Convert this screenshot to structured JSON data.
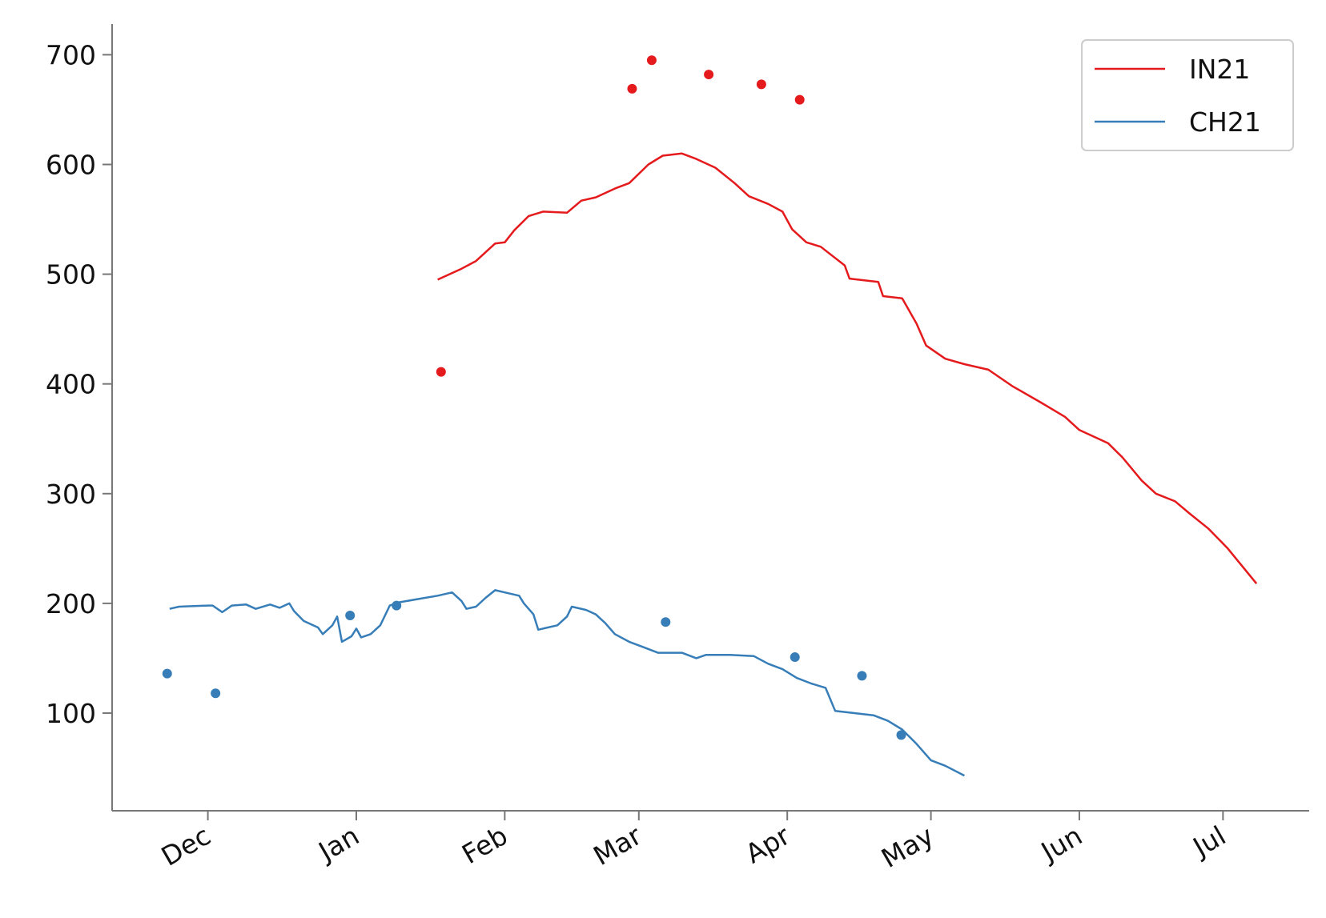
{
  "chart_data": {
    "type": "line",
    "xlim": [
      -20,
      230
    ],
    "ylim": [
      11,
      728
    ],
    "xticks": [
      {
        "value": 0,
        "label": "Dec"
      },
      {
        "value": 31,
        "label": "Jan"
      },
      {
        "value": 62,
        "label": "Feb"
      },
      {
        "value": 90,
        "label": "Mar"
      },
      {
        "value": 121,
        "label": "Apr"
      },
      {
        "value": 151,
        "label": "May"
      },
      {
        "value": 182,
        "label": "Jun"
      },
      {
        "value": 212,
        "label": "Jul"
      }
    ],
    "yticks": [
      100,
      200,
      300,
      400,
      500,
      600,
      700
    ],
    "legend": "upper right",
    "series": [
      {
        "name": "IN21",
        "color": "#e41a1c",
        "x": [
          48,
          53,
          56,
          60,
          62,
          64,
          67,
          70,
          75,
          78,
          81,
          85,
          88,
          92,
          95,
          99,
          102,
          106,
          110,
          113,
          117,
          120,
          122,
          125,
          128,
          133,
          134,
          140,
          141,
          145,
          148,
          150,
          154,
          158,
          163,
          168,
          174,
          179,
          182,
          188,
          191,
          195,
          198,
          202,
          205,
          209,
          213,
          216,
          219
        ],
        "values": [
          495,
          505,
          512,
          528,
          529,
          540,
          553,
          557,
          556,
          567,
          570,
          578,
          583,
          600,
          608,
          610,
          605,
          597,
          583,
          571,
          564,
          557,
          541,
          529,
          525,
          508,
          496,
          493,
          480,
          478,
          455,
          435,
          423,
          418,
          413,
          398,
          383,
          370,
          358,
          346,
          333,
          312,
          300,
          293,
          282,
          268,
          250,
          234,
          218
        ],
        "scatter_x": [
          48.7,
          88.6,
          92.7,
          104.6,
          115.6,
          123.6
        ],
        "scatter_values": [
          411,
          669,
          695,
          682,
          673,
          659
        ]
      },
      {
        "name": "CH21",
        "color": "#377eb8",
        "x": [
          -8,
          -6,
          0,
          1,
          3,
          5,
          8,
          10,
          13,
          15,
          17,
          18,
          20,
          23,
          24,
          26,
          27,
          28,
          30,
          31,
          32,
          34,
          36,
          38,
          40,
          44,
          48,
          51,
          53,
          54,
          56,
          58,
          60,
          62,
          65,
          66,
          68,
          69,
          71,
          73,
          75,
          76,
          79,
          81,
          83,
          85,
          88,
          91,
          94,
          99,
          102,
          104,
          109,
          114,
          117,
          120,
          123,
          126,
          129,
          131,
          135,
          139,
          142,
          145,
          148,
          151,
          154,
          158
        ],
        "values": [
          195,
          197,
          198,
          198,
          192,
          198,
          199,
          195,
          199,
          196,
          200,
          193,
          184,
          178,
          172,
          180,
          188,
          165,
          170,
          177,
          169,
          172,
          180,
          198,
          201,
          204,
          207,
          210,
          202,
          195,
          197,
          205,
          212,
          210,
          207,
          200,
          190,
          176,
          178,
          180,
          188,
          197,
          194,
          190,
          182,
          172,
          165,
          160,
          155,
          155,
          150,
          153,
          153,
          152,
          145,
          140,
          132,
          127,
          123,
          102,
          100,
          98,
          93,
          85,
          72,
          57,
          52,
          43
        ],
        "scatter_x": [
          -8.5,
          1.6,
          29.7,
          39.4,
          95.6,
          122.6,
          136.6,
          144.8
        ],
        "scatter_values": [
          136,
          118,
          189,
          198,
          183,
          151,
          134,
          80
        ]
      }
    ]
  }
}
